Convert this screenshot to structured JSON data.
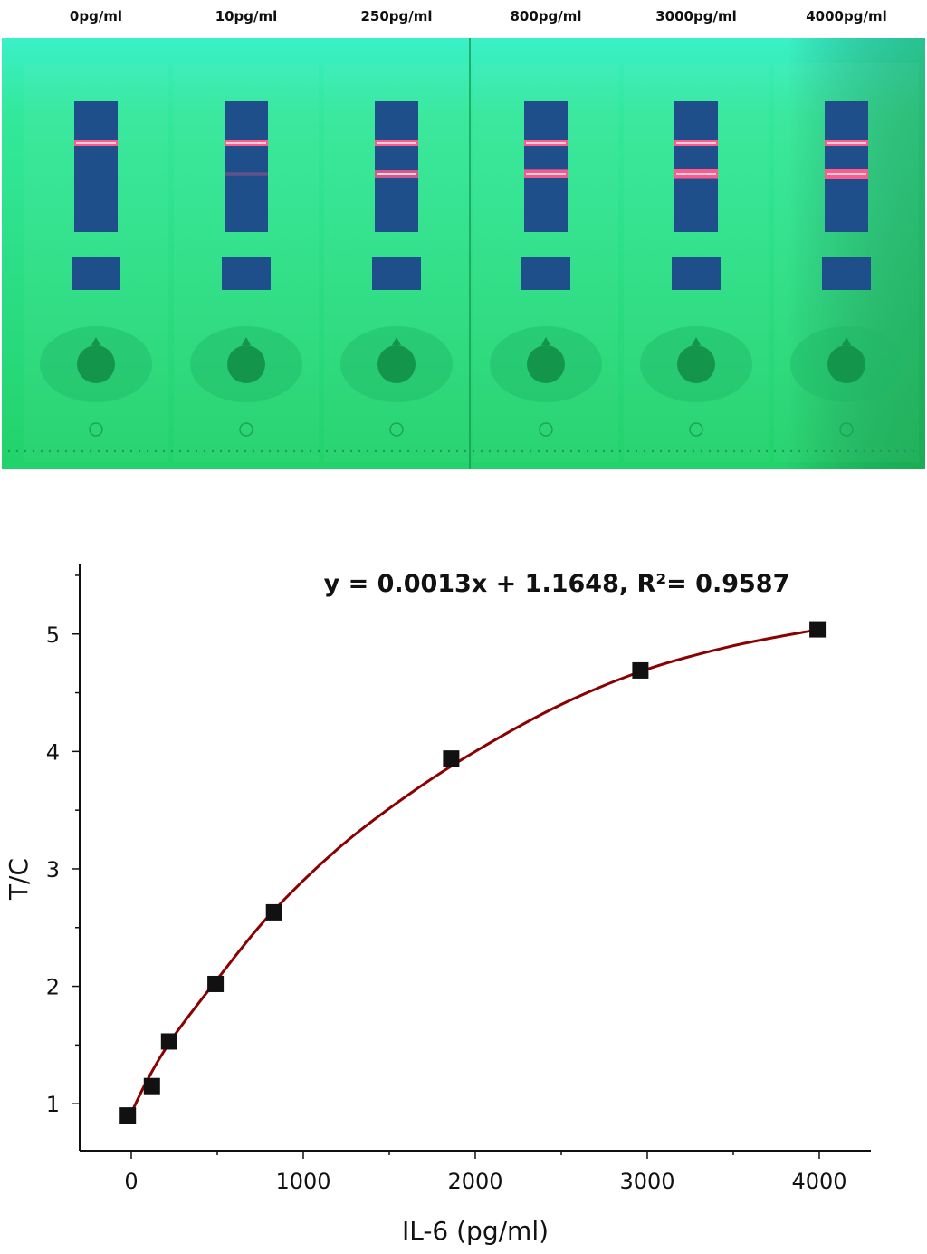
{
  "strip_image": {
    "lanes": [
      {
        "label": "0pg/ml",
        "test_line": 0
      },
      {
        "label": "10pg/ml",
        "test_line": 0.05
      },
      {
        "label": "250pg/ml",
        "test_line": 0.55
      },
      {
        "label": "800pg/ml",
        "test_line": 0.7
      },
      {
        "label": "3000pg/ml",
        "test_line": 0.9
      },
      {
        "label": "4000pg/ml",
        "test_line": 1.0
      }
    ],
    "colors": {
      "background": "#2de07f",
      "glow": "#3af0c8",
      "window": "#1f4f8a",
      "control_line": "#ff5a8c"
    }
  },
  "chart_data": {
    "type": "scatter",
    "xlabel": "IL-6 (pg/ml)",
    "ylabel": "T/C",
    "equation": "y = 0.0013x + 1.1648, R²= 0.9587",
    "xlim": [
      -300,
      4300
    ],
    "ylim": [
      0.6,
      5.6
    ],
    "xticks": [
      0,
      1000,
      2000,
      3000,
      4000
    ],
    "yticks": [
      1,
      2,
      3,
      4,
      5
    ],
    "points": [
      {
        "x": -20,
        "y": 0.9
      },
      {
        "x": 120,
        "y": 1.15
      },
      {
        "x": 220,
        "y": 1.53
      },
      {
        "x": 490,
        "y": 2.02
      },
      {
        "x": 830,
        "y": 2.63
      },
      {
        "x": 1860,
        "y": 3.94
      },
      {
        "x": 2960,
        "y": 4.69
      },
      {
        "x": 3990,
        "y": 5.04
      }
    ],
    "fit_curve": [
      {
        "x": 0,
        "y": 0.92
      },
      {
        "x": 100,
        "y": 1.22
      },
      {
        "x": 250,
        "y": 1.58
      },
      {
        "x": 500,
        "y": 2.06
      },
      {
        "x": 800,
        "y": 2.6
      },
      {
        "x": 1200,
        "y": 3.17
      },
      {
        "x": 1600,
        "y": 3.62
      },
      {
        "x": 2000,
        "y": 4.0
      },
      {
        "x": 2500,
        "y": 4.4
      },
      {
        "x": 3000,
        "y": 4.7
      },
      {
        "x": 3500,
        "y": 4.9
      },
      {
        "x": 4000,
        "y": 5.04
      }
    ],
    "colors": {
      "marker": "#111111",
      "fit_line": "#8b0000",
      "axis": "#111111"
    }
  }
}
